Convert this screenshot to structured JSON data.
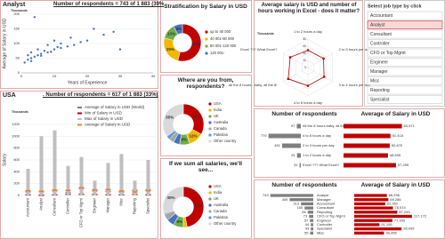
{
  "chart_data": [
    {
      "type": "scatter",
      "title": "Analyst",
      "subtitle": "Number of respondents = 743 of 1 883 (39%",
      "xlabel": "Years of Experience",
      "ylabel": "Average of Salary in USD",
      "y_unit": "Thousands",
      "color": "#4472c4",
      "x": [
        1,
        2,
        2,
        3,
        3,
        4,
        5,
        5,
        6,
        7,
        8,
        8,
        10,
        10,
        12,
        12,
        14,
        15,
        16,
        18,
        20,
        22,
        25,
        28,
        3,
        6,
        9,
        11,
        4,
        30
      ],
      "values": [
        35,
        45,
        60,
        50,
        70,
        55,
        60,
        80,
        65,
        75,
        70,
        95,
        80,
        110,
        85,
        100,
        90,
        120,
        95,
        105,
        110,
        150,
        130,
        140,
        40,
        58,
        72,
        88,
        190,
        80
      ],
      "xlim": [
        0,
        40
      ],
      "xticks": [
        0,
        10,
        20,
        30,
        40
      ],
      "ylim": [
        0,
        200
      ],
      "yticks": [
        0,
        50,
        100,
        150,
        200
      ],
      "grid": true
    },
    {
      "type": "donut",
      "title": "Stratification by Salary in USD",
      "categories": [
        "up to 40 000",
        "40 001-80 000",
        "80 001-120 000",
        "120 001-"
      ],
      "values": [
        54,
        25,
        13,
        8
      ],
      "value_labels": [
        "54%",
        "25%",
        "13%",
        "8%"
      ],
      "colors": [
        "#c00000",
        "#f2b800",
        "#70ad47",
        "#4472c4"
      ]
    },
    {
      "type": "combo",
      "title": "USA",
      "subtitle": ". Number of respondents = 617 of 1 883 (33%)",
      "ylabel": "Salary",
      "y_unit": "Thousands",
      "categories": [
        "Accountant",
        "Analyst",
        "Consultant",
        "Controller",
        "CFO or Top Mgmt",
        "Engineer",
        "Manager",
        "Misc",
        "Reporting",
        "Specialist"
      ],
      "series": [
        {
          "name": "Average of Salary in USD (World)",
          "color": "#7f7f7f",
          "style": "dash",
          "values": [
            63,
            66,
            79,
            51,
            117,
            77,
            69,
            60,
            87,
            96
          ]
        },
        {
          "name": "Min of Salary in USD",
          "color": "#c00000",
          "style": "dash",
          "values": [
            10,
            5,
            10,
            20,
            20,
            15,
            10,
            10,
            20,
            10
          ]
        },
        {
          "name": "Max of Salary in USD",
          "color": "#bfbfbf",
          "style": "bar",
          "values": [
            450,
            1000,
            1100,
            500,
            650,
            250,
            550,
            700,
            250,
            600
          ]
        },
        {
          "name": "Average of Salary in USD",
          "color": "#ed7d31",
          "style": "dash",
          "values": [
            80,
            70,
            90,
            85,
            130,
            95,
            100,
            75,
            60,
            80
          ]
        }
      ],
      "ylim": [
        0,
        1200
      ],
      "yticks": [
        0,
        200,
        400,
        600,
        800,
        1000,
        1200
      ],
      "grid": true
    },
    {
      "type": "donut",
      "title": "Where are you from, respondents?",
      "categories": [
        "USA",
        "India",
        "UK",
        "Australia",
        "Canada",
        "Pakistan",
        "Other country"
      ],
      "values": [
        33,
        12,
        8,
        5,
        4,
        3,
        35
      ],
      "value_labels": [
        "33%",
        "12%",
        "8%",
        "5%",
        "4%",
        "3%",
        "35%"
      ],
      "colors": [
        "#c00000",
        "#f2b800",
        "#70ad47",
        "#4472c4",
        "#a5a5a5",
        "#5b9bd5",
        "#d9d9d9"
      ]
    },
    {
      "type": "donut",
      "title": "If we sum all salaries, we'll see...",
      "categories": [
        "USA",
        "India",
        "UK",
        "Australia",
        "Canada",
        "Pakistan",
        "Other country"
      ],
      "values": [
        47,
        3,
        8,
        6,
        5,
        1,
        30
      ],
      "value_labels": [
        "47%",
        "3%",
        "8%",
        "6%",
        "5%",
        "1%",
        "30%"
      ],
      "colors": [
        "#c00000",
        "#f2b800",
        "#70ad47",
        "#4472c4",
        "#a5a5a5",
        "#5b9bd5",
        "#d9d9d9"
      ]
    },
    {
      "type": "radar",
      "title": "Average salary is USD and number of hours working in Excel - does it matter?",
      "r_unit": "Thousands",
      "color": "#c00000",
      "categories": [
        "1 to 2 hours a day",
        "2 to 3 hours per day",
        "3 to 4 hours per day",
        "4 to 8 hours a day",
        "All the 8 hours.. baby, all the 8!",
        "Excel ??? What Excel?"
      ],
      "values": [
        48.7,
        50.7,
        52.3,
        51.4,
        64.0,
        57.5
      ],
      "rlim": [
        0,
        80
      ],
      "rticks": [
        0,
        20,
        40,
        60,
        80
      ]
    },
    {
      "type": "hbar",
      "title": "Number of respondents",
      "direction": "left",
      "color": "#7f7f7f",
      "categories": [
        "All the 8 hours baby, all the 8!",
        "4 to 8 hours a day",
        "2 to 3 hours per day",
        "1 to 2 hours a day",
        "Excel ??? What Excel?"
      ],
      "values": [
        97,
        779,
        451,
        91,
        31
      ],
      "xlim": [
        0,
        900
      ]
    },
    {
      "type": "hbar",
      "title": "Average of Salary in USD",
      "direction": "right",
      "color": "#c00000",
      "values": [
        63971,
        51415,
        50670,
        48695,
        57495
      ],
      "value_labels": [
        "63,971",
        "51,415",
        "50,670",
        "48,695",
        "57,495"
      ],
      "xlim": [
        0,
        80000
      ]
    },
    {
      "type": "hbar",
      "title": "Number of respondents",
      "direction": "left",
      "color": "#7f7f7f",
      "categories": [
        "Analyst",
        "Manager",
        "Accountant",
        "Consultant",
        "Reporting",
        "CFO or Top Mgmt",
        "Engineer",
        "Controller",
        "Specialist",
        "Misc"
      ],
      "values": [
        743,
        409,
        213,
        150,
        96,
        73,
        57,
        44,
        43,
        55
      ],
      "xlim": [
        0,
        800
      ]
    },
    {
      "type": "hbar",
      "title": "Average of Salary in USD",
      "direction": "right",
      "color": "#c00000",
      "values": [
        66296,
        69286,
        62951,
        78574,
        87299,
        117172,
        77395,
        51195,
        96095,
        60495
      ],
      "value_labels": [
        "66,296",
        "69,286",
        "62,951",
        "78,574",
        "87,299",
        "117,172",
        "77,395",
        "51,195",
        "96,095",
        "60,495"
      ],
      "xlim": [
        0,
        130000
      ]
    }
  ],
  "slicer": {
    "title": "Select job type by click",
    "items": [
      "Accountant",
      "Analyst",
      "Consultant",
      "Controller",
      "CFO or Top Mgmt",
      "Engineer",
      "Manager",
      "Misc",
      "Reporting",
      "Specialist"
    ],
    "selected_index": 1
  }
}
